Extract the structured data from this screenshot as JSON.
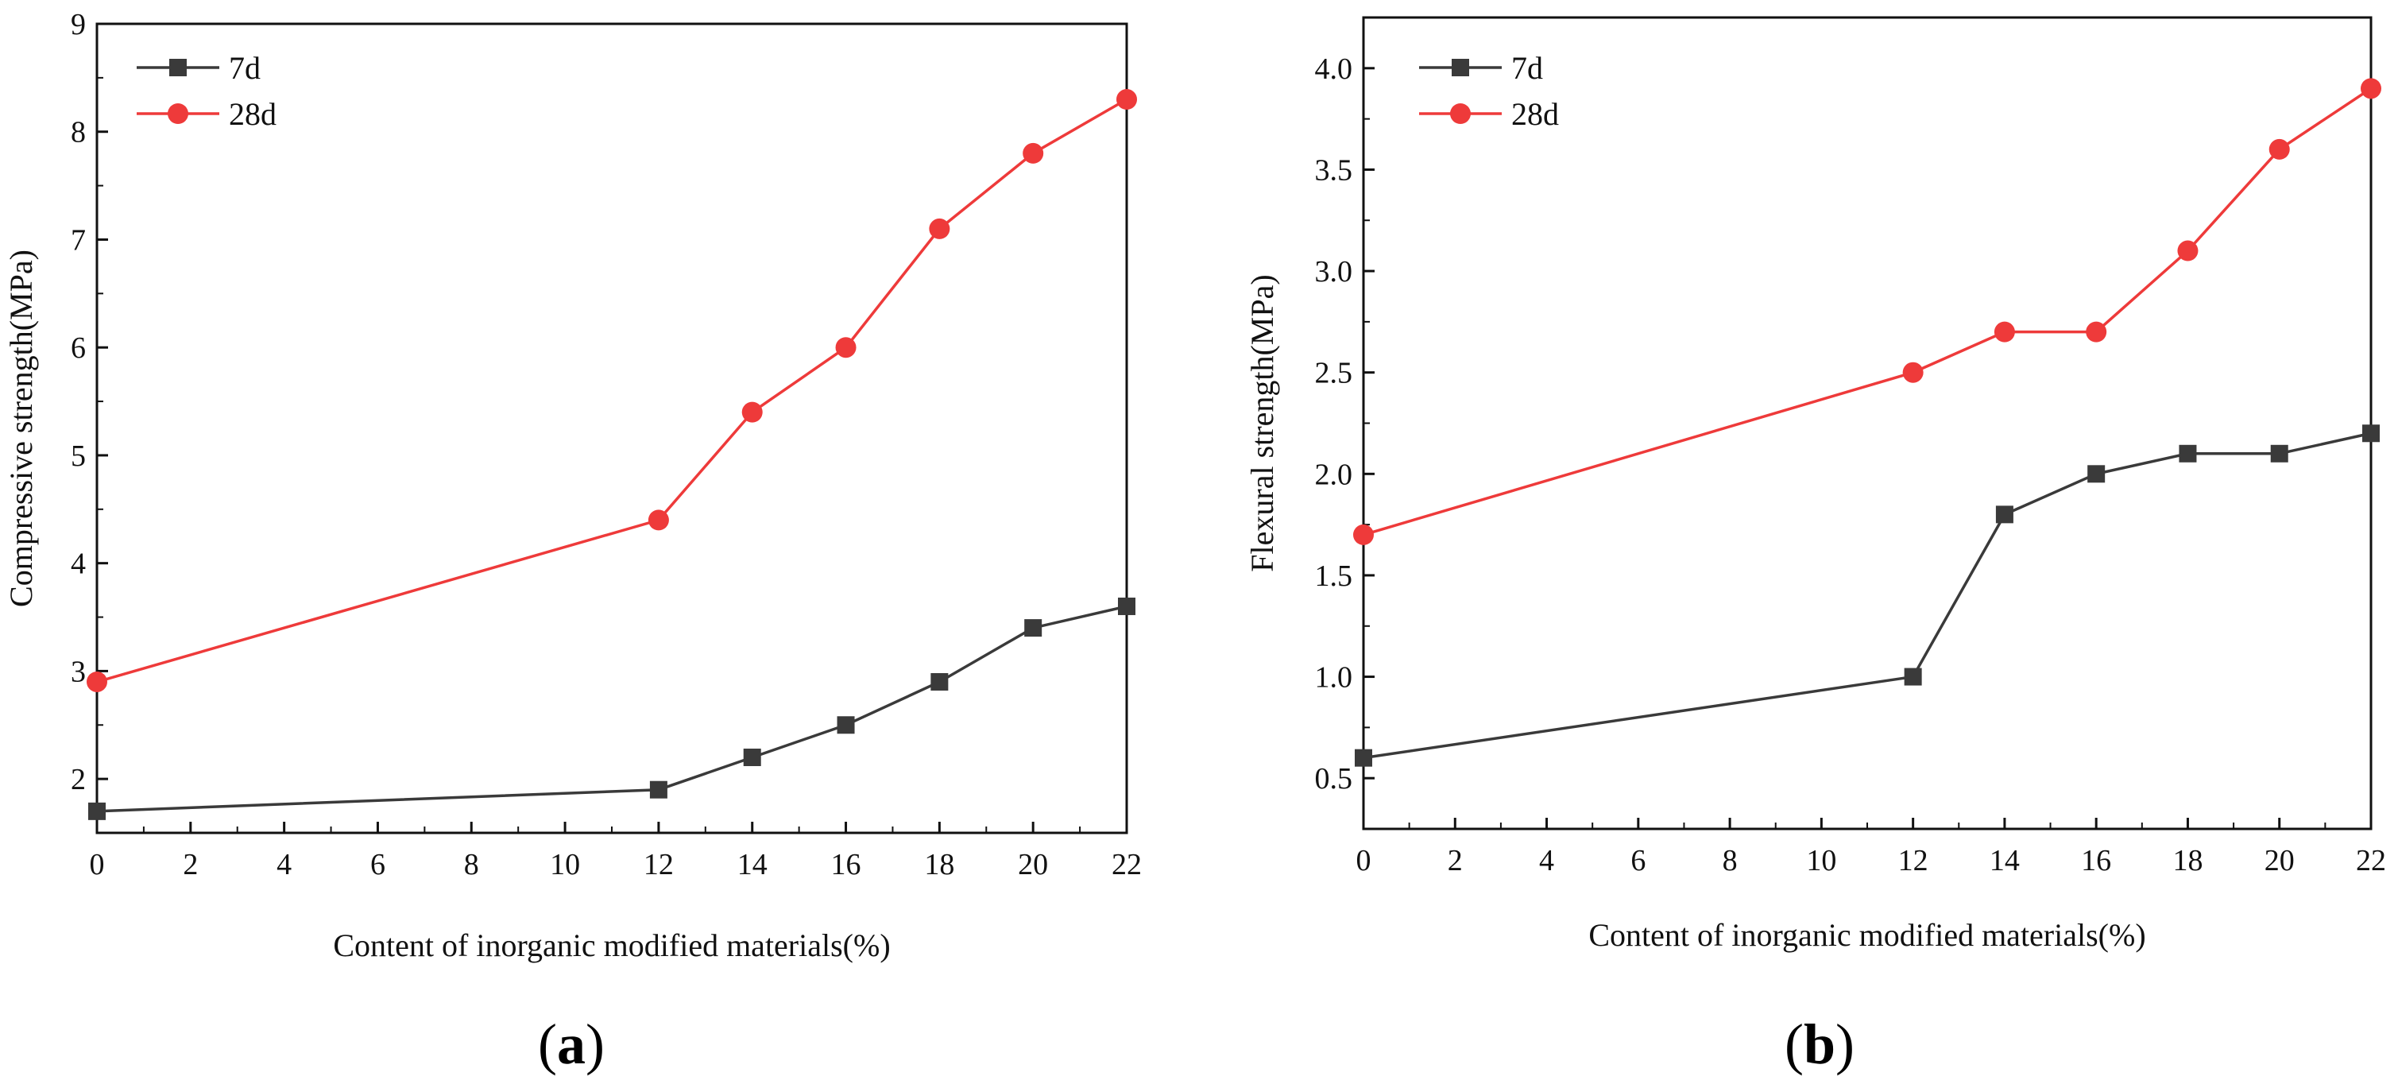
{
  "figure": {
    "panels": [
      "(a)",
      "(b)"
    ]
  },
  "chart_data": [
    {
      "type": "line",
      "panel_label": "(a)",
      "caption_open": "(",
      "caption_letter": "a",
      "caption_close": ")",
      "xlabel": "Content of inorganic modified materials(%)",
      "ylabel": "Compressive strength(MPa)",
      "xlim": [
        0,
        22
      ],
      "ylim": [
        1.5,
        9
      ],
      "xticks": [
        0,
        2,
        4,
        6,
        8,
        10,
        12,
        14,
        16,
        18,
        20,
        22
      ],
      "xtick_labels": [
        "0",
        "2",
        "4",
        "6",
        "8",
        "10",
        "12",
        "14",
        "16",
        "18",
        "20",
        "22"
      ],
      "yticks": [
        2,
        3,
        4,
        5,
        6,
        7,
        8,
        9
      ],
      "ytick_labels": [
        "2",
        "3",
        "4",
        "5",
        "6",
        "7",
        "8",
        "9"
      ],
      "legend_position": "top-left",
      "x": [
        0,
        12,
        14,
        16,
        18,
        20,
        22
      ],
      "series": [
        {
          "name": "7d",
          "marker": "square",
          "color": "#3a3a3a",
          "values": [
            1.7,
            1.9,
            2.2,
            2.5,
            2.9,
            3.4,
            3.6
          ]
        },
        {
          "name": "28d",
          "marker": "circle",
          "color": "#ee3a3a",
          "values": [
            2.9,
            4.4,
            5.4,
            6.0,
            7.1,
            7.8,
            8.3
          ]
        }
      ]
    },
    {
      "type": "line",
      "panel_label": "(b)",
      "caption_open": "(",
      "caption_letter": "b",
      "caption_close": ")",
      "xlabel": "Content of inorganic modified materials(%)",
      "ylabel": "Flexural strength(MPa)",
      "xlim": [
        0,
        22
      ],
      "ylim": [
        0.25,
        4.25
      ],
      "xticks": [
        0,
        2,
        4,
        6,
        8,
        10,
        12,
        14,
        16,
        18,
        20,
        22
      ],
      "xtick_labels": [
        "0",
        "2",
        "4",
        "6",
        "8",
        "10",
        "12",
        "14",
        "16",
        "18",
        "20",
        "22"
      ],
      "yticks": [
        0.5,
        1.0,
        1.5,
        2.0,
        2.5,
        3.0,
        3.5,
        4.0
      ],
      "ytick_labels": [
        "0.5",
        "1.0",
        "1.5",
        "2.0",
        "2.5",
        "3.0",
        "3.5",
        "4.0"
      ],
      "legend_position": "top-left",
      "x": [
        0,
        12,
        14,
        16,
        18,
        20,
        22
      ],
      "series": [
        {
          "name": "7d",
          "marker": "square",
          "color": "#3a3a3a",
          "values": [
            0.6,
            1.0,
            1.8,
            2.0,
            2.1,
            2.1,
            2.2
          ]
        },
        {
          "name": "28d",
          "marker": "circle",
          "color": "#ee3a3a",
          "values": [
            1.7,
            2.5,
            2.7,
            2.7,
            3.1,
            3.6,
            3.9
          ]
        }
      ]
    }
  ]
}
